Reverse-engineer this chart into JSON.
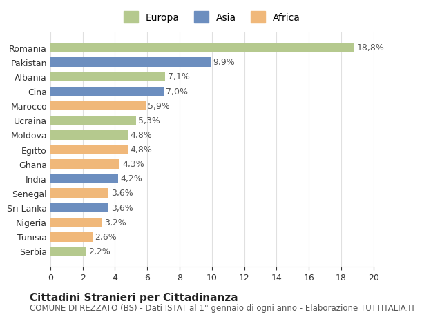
{
  "countries": [
    "Serbia",
    "Tunisia",
    "Nigeria",
    "Sri Lanka",
    "Senegal",
    "India",
    "Ghana",
    "Egitto",
    "Moldova",
    "Ucraina",
    "Marocco",
    "Cina",
    "Albania",
    "Pakistan",
    "Romania"
  ],
  "values": [
    2.2,
    2.6,
    3.2,
    3.6,
    3.6,
    4.2,
    4.3,
    4.8,
    4.8,
    5.3,
    5.9,
    7.0,
    7.1,
    9.9,
    18.8
  ],
  "continents": [
    "Europa",
    "Africa",
    "Africa",
    "Asia",
    "Africa",
    "Asia",
    "Africa",
    "Africa",
    "Europa",
    "Europa",
    "Africa",
    "Asia",
    "Europa",
    "Asia",
    "Europa"
  ],
  "colors": {
    "Europa": "#b5c98e",
    "Asia": "#6c8ebf",
    "Africa": "#f0b87a"
  },
  "legend_colors": {
    "Europa": "#b5c98e",
    "Asia": "#6c8ebf",
    "Africa": "#f0b87a"
  },
  "xlim": [
    0,
    20
  ],
  "xticks": [
    0,
    2,
    4,
    6,
    8,
    10,
    12,
    14,
    16,
    18,
    20
  ],
  "title": "Cittadini Stranieri per Cittadinanza",
  "subtitle": "COMUNE DI REZZATO (BS) - Dati ISTAT al 1° gennaio di ogni anno - Elaborazione TUTTITALIA.IT",
  "bg_color": "#ffffff",
  "grid_color": "#e0e0e0",
  "bar_height": 0.65,
  "label_fontsize": 9,
  "tick_fontsize": 9,
  "title_fontsize": 11,
  "subtitle_fontsize": 8.5,
  "legend_fontsize": 10
}
